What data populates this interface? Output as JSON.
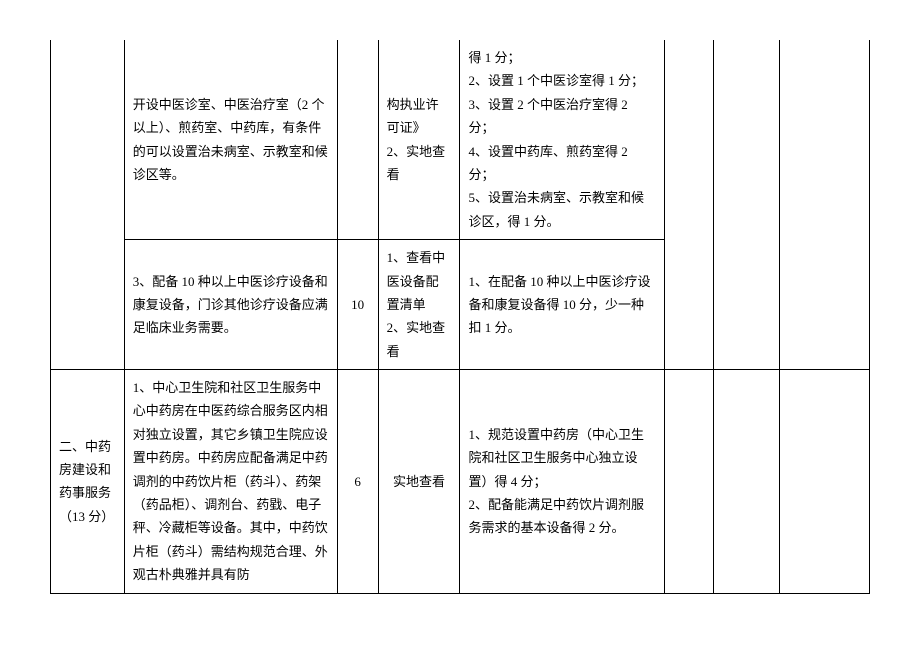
{
  "table": {
    "rows": [
      {
        "c1": "",
        "c2": "开设中医诊室、中医治疗室（2 个以上）、煎药室、中药库，有条件的可以设置治未病室、示教室和候诊区等。",
        "c3": "",
        "c4": "构执业许可证》\n2、实地查看",
        "c5": "得 1 分；\n2、设置 1 个中医诊室得 1 分；\n3、设置 2 个中医治疗室得 2 分；\n4、设置中药库、煎药室得 2 分；\n5、设置治未病室、示教室和候诊区，得 1 分。",
        "c6": "",
        "c7": "",
        "c8": ""
      },
      {
        "c2": "3、配备 10 种以上中医诊疗设备和康复设备，门诊其他诊疗设备应满足临床业务需要。",
        "c3": "10",
        "c4": "1、查看中医设备配置清单\n2、实地查看",
        "c5": "1、在配备 10 种以上中医诊疗设备和康复设备得 10 分，少一种扣 1 分。"
      },
      {
        "c1": "二、中药房建设和药事服务（13 分）",
        "c2": "1、中心卫生院和社区卫生服务中心中药房在中医药综合服务区内相对独立设置，其它乡镇卫生院应设置中药房。中药房应配备满足中药调剂的中药饮片柜（药斗）、药架（药品柜）、调剂台、药戥、电子秤、冷藏柜等设备。其中，中药饮片柜（药斗）需结构规范合理、外观古朴典雅并具有防",
        "c3": "6",
        "c4": "实地查看",
        "c5": "1、规范设置中药房（中心卫生院和社区卫生服务中心独立设置）得 4 分；\n2、配备能满足中药饮片调剂服务需求的基本设备得 2 分。",
        "c6": "",
        "c7": "",
        "c8": ""
      }
    ]
  },
  "style": {
    "border_color": "#000000",
    "background_color": "#ffffff",
    "font_size": 13,
    "line_height": 1.8,
    "col_widths_pct": [
      9,
      26,
      5,
      10,
      25,
      6,
      8,
      11
    ]
  }
}
